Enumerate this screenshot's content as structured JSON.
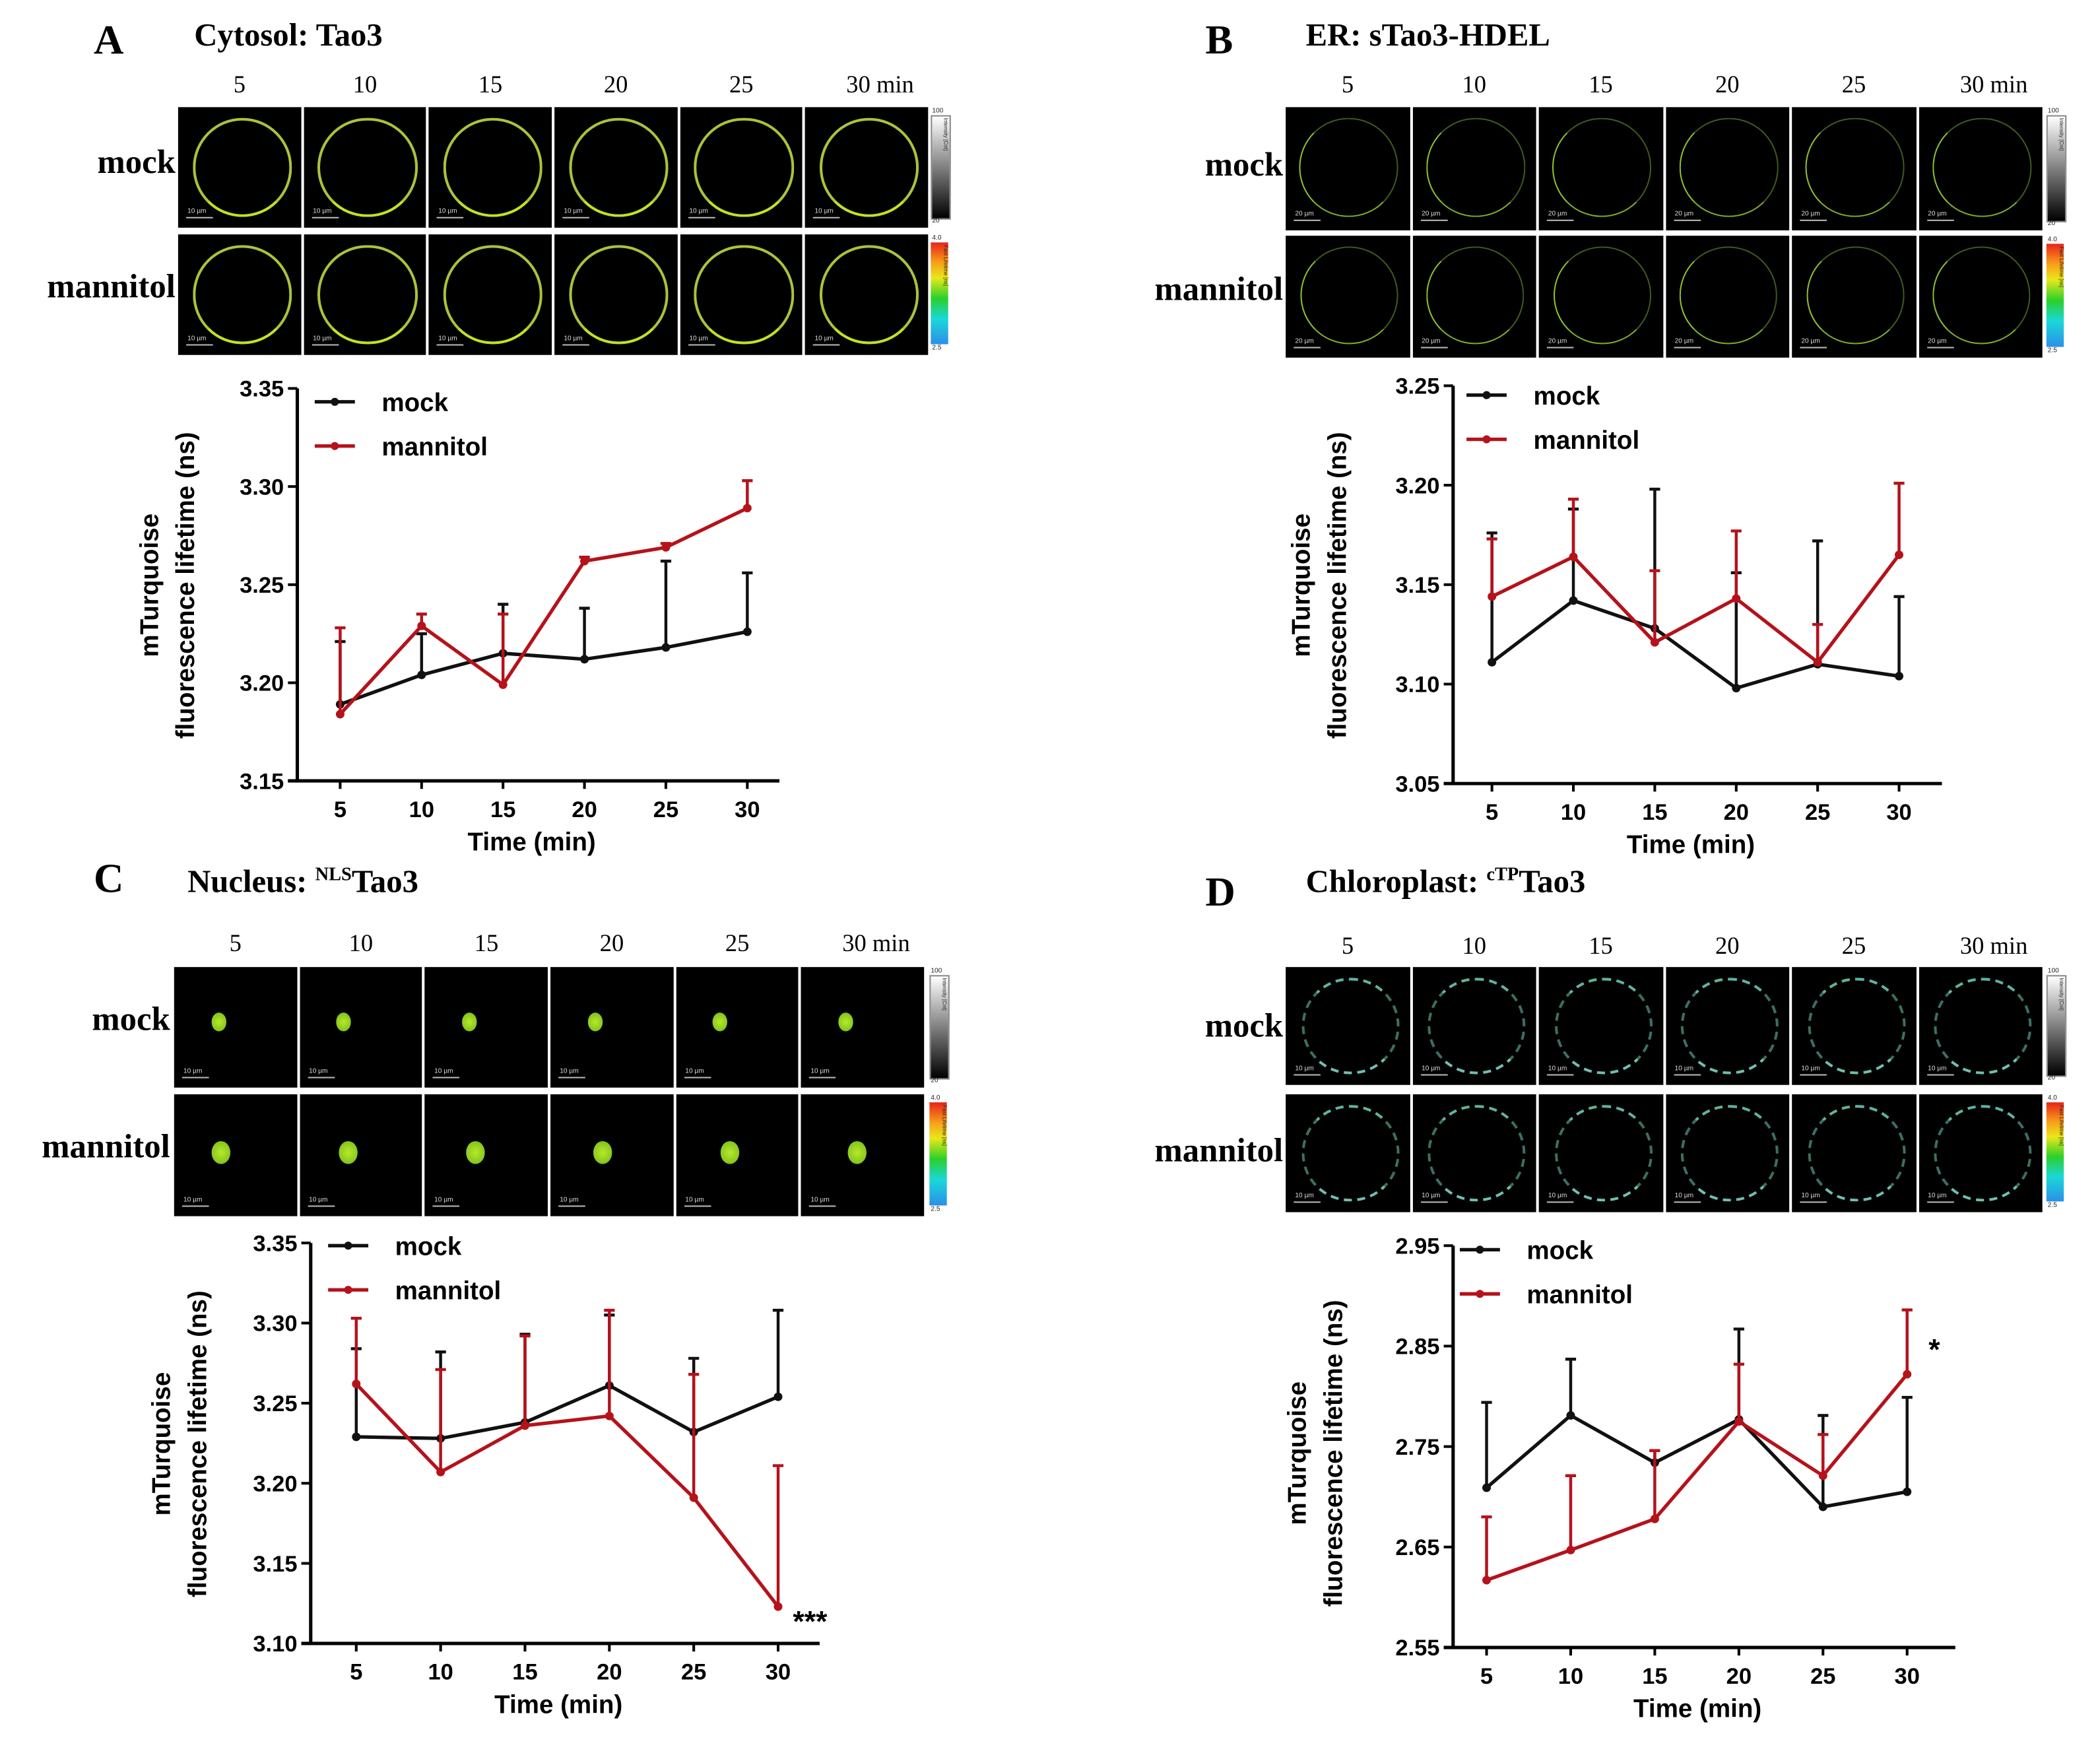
{
  "colors": {
    "mock": "#111111",
    "mannitol": "#b5121b"
  },
  "panels": [
    {
      "letter": "A",
      "title": {
        "prefix": "Cytosol: ",
        "sup": "",
        "suffix": "Tao3"
      },
      "micrographs": {
        "time_labels": [
          "5",
          "10",
          "15",
          "20",
          "25",
          "30 min"
        ],
        "row_labels": [
          "mock",
          "mannitol"
        ],
        "scale_bar": "10 µm",
        "intensity_bar": {
          "max": "100",
          "min": "20",
          "title": "Intensity [Cnt]"
        },
        "lifetime_bar": {
          "max": "4.0",
          "min": "2.5",
          "title": "Fast Lifetime [ns]"
        },
        "signal": "ring"
      }
    },
    {
      "letter": "B",
      "title": {
        "prefix": "ER: ",
        "sup": "",
        "suffix": "sTao3-HDEL"
      },
      "micrographs": {
        "time_labels": [
          "5",
          "10",
          "15",
          "20",
          "25",
          "30 min"
        ],
        "row_labels": [
          "mock",
          "mannitol"
        ],
        "scale_bar": "20 µm",
        "intensity_bar": {
          "max": "100",
          "min": "20",
          "title": "Intensity [Cnt]"
        },
        "lifetime_bar": {
          "max": "4.0",
          "min": "2.5",
          "title": "Fast Lifetime [ns]"
        },
        "signal": "er"
      }
    },
    {
      "letter": "C",
      "title": {
        "prefix": "Nucleus: ",
        "sup": "NLS",
        "suffix": "Tao3"
      },
      "micrographs": {
        "time_labels": [
          "5",
          "10",
          "15",
          "20",
          "25",
          "30 min"
        ],
        "row_labels": [
          "mock",
          "mannitol"
        ],
        "scale_bar": "10 µm",
        "intensity_bar": {
          "max": "100",
          "min": "20",
          "title": "Intensity [Cnt]"
        },
        "lifetime_bar": {
          "max": "4.0",
          "min": "2.5",
          "title": "Fast Lifetime [ns]"
        },
        "signal": "nucleus"
      }
    },
    {
      "letter": "D",
      "title": {
        "prefix": "Chloroplast: ",
        "sup": "cTP",
        "suffix": "Tao3"
      },
      "micrographs": {
        "time_labels": [
          "5",
          "10",
          "15",
          "20",
          "25",
          "30 min"
        ],
        "row_labels": [
          "mock",
          "mannitol"
        ],
        "scale_bar": "10 µm",
        "intensity_bar": {
          "max": "100",
          "min": "20",
          "title": "Intensity [Cnt]"
        },
        "lifetime_bar": {
          "max": "4.0",
          "min": "2.5",
          "title": "Fast Lifetime [ns]"
        },
        "signal": "chloroplast"
      }
    }
  ],
  "chart_data": [
    {
      "type": "line",
      "panel": "A",
      "x": [
        5,
        10,
        15,
        20,
        25,
        30
      ],
      "xlabel": "Time (min)",
      "ylabel": [
        "mTurquoise",
        "fluorescence lifetime (ns)"
      ],
      "ylim": [
        3.15,
        3.35
      ],
      "yticks": [
        "3.15",
        "3.20",
        "3.25",
        "3.30",
        "3.35"
      ],
      "xticks": [
        "5",
        "10",
        "15",
        "20",
        "25",
        "30"
      ],
      "legend": "top-left",
      "series": [
        {
          "name": "mock",
          "values": [
            3.189,
            3.204,
            3.215,
            3.212,
            3.218,
            3.226
          ],
          "error_upper": [
            3.221,
            3.225,
            3.24,
            3.238,
            3.262,
            3.256
          ]
        },
        {
          "name": "mannitol",
          "values": [
            3.184,
            3.229,
            3.199,
            3.262,
            3.269,
            3.289
          ],
          "error_upper": [
            3.228,
            3.235,
            3.235,
            3.264,
            3.271,
            3.303
          ]
        }
      ],
      "annotation": ""
    },
    {
      "type": "line",
      "panel": "B",
      "x": [
        5,
        10,
        15,
        20,
        25,
        30
      ],
      "xlabel": "Time (min)",
      "ylabel": [
        "mTurquoise",
        "fluorescence lifetime (ns)"
      ],
      "ylim": [
        3.05,
        3.25
      ],
      "yticks": [
        "3.05",
        "3.10",
        "3.15",
        "3.20",
        "3.25"
      ],
      "xticks": [
        "5",
        "10",
        "15",
        "20",
        "25",
        "30"
      ],
      "legend": "top-left",
      "series": [
        {
          "name": "mock",
          "values": [
            3.111,
            3.142,
            3.128,
            3.098,
            3.11,
            3.104
          ],
          "error_upper": [
            3.176,
            3.188,
            3.198,
            3.156,
            3.172,
            3.144
          ]
        },
        {
          "name": "mannitol",
          "values": [
            3.144,
            3.164,
            3.121,
            3.143,
            3.111,
            3.165
          ],
          "error_upper": [
            3.173,
            3.193,
            3.157,
            3.177,
            3.13,
            3.201
          ]
        }
      ],
      "annotation": ""
    },
    {
      "type": "line",
      "panel": "C",
      "x": [
        5,
        10,
        15,
        20,
        25,
        30
      ],
      "xlabel": "Time (min)",
      "ylabel": [
        "mTurquoise",
        "fluorescence lifetime (ns)"
      ],
      "ylim": [
        3.1,
        3.35
      ],
      "yticks": [
        "3.10",
        "3.15",
        "3.20",
        "3.25",
        "3.30",
        "3.35"
      ],
      "xticks": [
        "5",
        "10",
        "15",
        "20",
        "25",
        "30"
      ],
      "legend": "top-left",
      "series": [
        {
          "name": "mock",
          "values": [
            3.229,
            3.228,
            3.238,
            3.261,
            3.232,
            3.254
          ],
          "error_upper": [
            3.284,
            3.282,
            3.293,
            3.305,
            3.278,
            3.308
          ]
        },
        {
          "name": "mannitol",
          "values": [
            3.262,
            3.207,
            3.236,
            3.242,
            3.191,
            3.123
          ],
          "error_upper": [
            3.303,
            3.271,
            3.292,
            3.308,
            3.268,
            3.211
          ]
        }
      ],
      "annotation": "***"
    },
    {
      "type": "line",
      "panel": "D",
      "x": [
        5,
        10,
        15,
        20,
        25,
        30
      ],
      "xlabel": "Time (min)",
      "ylabel": [
        "mTurquoise",
        "fluorescence lifetime (ns)"
      ],
      "ylim": [
        2.55,
        2.95
      ],
      "yticks": [
        "2.55",
        "2.65",
        "2.75",
        "2.85",
        "2.95"
      ],
      "xticks": [
        "5",
        "10",
        "15",
        "20",
        "25",
        "30"
      ],
      "legend": "top-left",
      "series": [
        {
          "name": "mock",
          "values": [
            2.709,
            2.781,
            2.734,
            2.777,
            2.69,
            2.705
          ],
          "error_upper": [
            2.794,
            2.837,
            2.746,
            2.867,
            2.781,
            2.799
          ]
        },
        {
          "name": "mannitol",
          "values": [
            2.617,
            2.647,
            2.678,
            2.775,
            2.721,
            2.822
          ],
          "error_upper": [
            2.68,
            2.721,
            2.746,
            2.832,
            2.762,
            2.886
          ]
        }
      ],
      "annotation": "*"
    }
  ]
}
